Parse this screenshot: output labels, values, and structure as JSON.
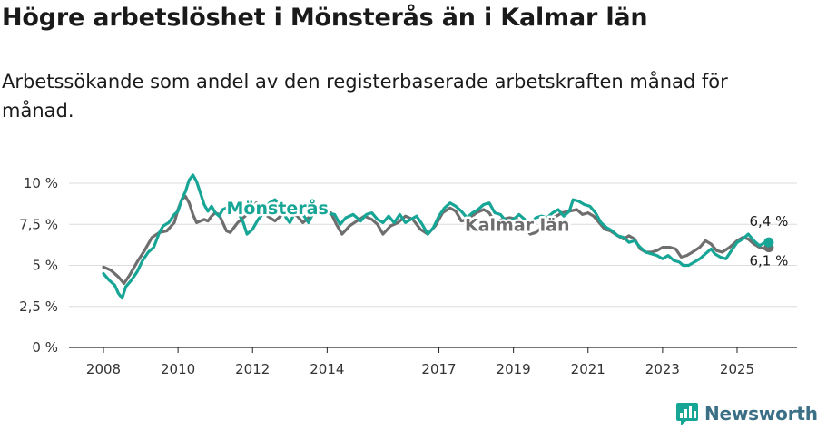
{
  "header": {
    "title": "Högre arbetslöshet i Mönsterås än i Kalmar län",
    "subtitle": "Arbetssökande som andel av den registerbaserade arbetskraften månad för månad."
  },
  "brand": {
    "name": "Newsworthy"
  },
  "chart_data": {
    "type": "line",
    "title": "Högre arbetslöshet i Mönsterås än i Kalmar län",
    "subtitle": "Arbetssökande som andel av den registerbaserade arbetskraften månad för månad.",
    "xlabel": "",
    "ylabel": "",
    "xlim": [
      2008,
      2026
    ],
    "ylim": [
      0,
      10
    ],
    "x_ticks": [
      {
        "value": 2008,
        "label": "2008"
      },
      {
        "value": 2010,
        "label": "2010"
      },
      {
        "value": 2012,
        "label": "2012"
      },
      {
        "value": 2014,
        "label": "2014"
      },
      {
        "value": 2017,
        "label": "2017"
      },
      {
        "value": 2019,
        "label": "2019"
      },
      {
        "value": 2021,
        "label": "2021"
      },
      {
        "value": 2023,
        "label": "2023"
      },
      {
        "value": 2025,
        "label": "2025"
      }
    ],
    "y_ticks": [
      {
        "value": 0,
        "label": "0 %"
      },
      {
        "value": 2.5,
        "label": "2,5 %"
      },
      {
        "value": 5,
        "label": "5 %"
      },
      {
        "value": 7.5,
        "label": "7,5 %"
      },
      {
        "value": 10,
        "label": "10 %"
      }
    ],
    "grid": true,
    "series": [
      {
        "name": "Kalmar län",
        "color": "#6e6e6e",
        "end_label": "6,1 %",
        "points": [
          [
            2008.0,
            4.9
          ],
          [
            2008.2,
            4.7
          ],
          [
            2008.4,
            4.3
          ],
          [
            2008.55,
            3.9
          ],
          [
            2008.7,
            4.4
          ],
          [
            2008.9,
            5.2
          ],
          [
            2009.1,
            5.9
          ],
          [
            2009.3,
            6.7
          ],
          [
            2009.5,
            7.0
          ],
          [
            2009.7,
            7.1
          ],
          [
            2009.9,
            7.6
          ],
          [
            2010.0,
            8.4
          ],
          [
            2010.1,
            9.0
          ],
          [
            2010.2,
            9.2
          ],
          [
            2010.3,
            8.8
          ],
          [
            2010.4,
            8.1
          ],
          [
            2010.5,
            7.6
          ],
          [
            2010.6,
            7.7
          ],
          [
            2010.7,
            7.8
          ],
          [
            2010.8,
            7.7
          ],
          [
            2010.9,
            8.0
          ],
          [
            2011.0,
            8.2
          ],
          [
            2011.1,
            8.1
          ],
          [
            2011.2,
            7.6
          ],
          [
            2011.3,
            7.1
          ],
          [
            2011.4,
            7.0
          ],
          [
            2011.5,
            7.3
          ],
          [
            2011.6,
            7.6
          ],
          [
            2011.8,
            8.0
          ],
          [
            2012.0,
            8.5
          ],
          [
            2012.1,
            8.8
          ],
          [
            2012.25,
            8.5
          ],
          [
            2012.4,
            8.0
          ],
          [
            2012.6,
            7.7
          ],
          [
            2012.8,
            8.1
          ],
          [
            2013.0,
            8.2
          ],
          [
            2013.2,
            8.0
          ],
          [
            2013.35,
            7.6
          ],
          [
            2013.5,
            7.9
          ],
          [
            2013.7,
            8.2
          ],
          [
            2013.9,
            8.1
          ],
          [
            2014.1,
            8.2
          ],
          [
            2014.25,
            7.5
          ],
          [
            2014.4,
            6.9
          ],
          [
            2014.6,
            7.4
          ],
          [
            2014.8,
            7.7
          ],
          [
            2015.0,
            8.0
          ],
          [
            2015.2,
            7.8
          ],
          [
            2015.35,
            7.5
          ],
          [
            2015.5,
            6.9
          ],
          [
            2015.7,
            7.4
          ],
          [
            2015.9,
            7.6
          ],
          [
            2016.1,
            8.0
          ],
          [
            2016.3,
            7.8
          ],
          [
            2016.5,
            7.2
          ],
          [
            2016.7,
            6.9
          ],
          [
            2016.9,
            7.4
          ],
          [
            2017.1,
            8.2
          ],
          [
            2017.3,
            8.5
          ],
          [
            2017.45,
            8.3
          ],
          [
            2017.6,
            7.7
          ],
          [
            2017.8,
            7.8
          ],
          [
            2018.0,
            8.2
          ],
          [
            2018.2,
            8.4
          ],
          [
            2018.35,
            8.2
          ],
          [
            2018.5,
            7.6
          ],
          [
            2018.7,
            7.8
          ],
          [
            2018.9,
            7.9
          ],
          [
            2019.1,
            7.8
          ],
          [
            2019.3,
            7.4
          ],
          [
            2019.45,
            6.9
          ],
          [
            2019.6,
            7.0
          ],
          [
            2019.8,
            7.4
          ],
          [
            2020.0,
            7.9
          ],
          [
            2020.15,
            8.0
          ],
          [
            2020.3,
            8.2
          ],
          [
            2020.5,
            8.3
          ],
          [
            2020.7,
            8.4
          ],
          [
            2020.85,
            8.1
          ],
          [
            2021.0,
            8.2
          ],
          [
            2021.15,
            8.0
          ],
          [
            2021.3,
            7.6
          ],
          [
            2021.45,
            7.2
          ],
          [
            2021.6,
            7.1
          ],
          [
            2021.8,
            6.8
          ],
          [
            2021.95,
            6.6
          ],
          [
            2022.1,
            6.8
          ],
          [
            2022.25,
            6.6
          ],
          [
            2022.4,
            6.0
          ],
          [
            2022.55,
            5.8
          ],
          [
            2022.7,
            5.8
          ],
          [
            2022.85,
            5.9
          ],
          [
            2023.0,
            6.1
          ],
          [
            2023.2,
            6.1
          ],
          [
            2023.35,
            6.0
          ],
          [
            2023.5,
            5.5
          ],
          [
            2023.65,
            5.6
          ],
          [
            2023.8,
            5.8
          ],
          [
            2024.0,
            6.1
          ],
          [
            2024.15,
            6.5
          ],
          [
            2024.3,
            6.3
          ],
          [
            2024.45,
            5.9
          ],
          [
            2024.6,
            5.8
          ],
          [
            2024.8,
            6.1
          ],
          [
            2025.0,
            6.5
          ],
          [
            2025.15,
            6.7
          ],
          [
            2025.3,
            6.6
          ],
          [
            2025.45,
            6.3
          ],
          [
            2025.6,
            6.1
          ],
          [
            2025.75,
            6.0
          ],
          [
            2025.85,
            6.1
          ]
        ]
      },
      {
        "name": "Mönsterås",
        "color": "#17a596",
        "end_label": "6,4 %",
        "points": [
          [
            2008.0,
            4.5
          ],
          [
            2008.15,
            4.1
          ],
          [
            2008.3,
            3.8
          ],
          [
            2008.4,
            3.3
          ],
          [
            2008.5,
            3.0
          ],
          [
            2008.6,
            3.7
          ],
          [
            2008.75,
            4.1
          ],
          [
            2008.9,
            4.6
          ],
          [
            2009.05,
            5.3
          ],
          [
            2009.2,
            5.8
          ],
          [
            2009.35,
            6.1
          ],
          [
            2009.5,
            7.0
          ],
          [
            2009.6,
            7.4
          ],
          [
            2009.75,
            7.6
          ],
          [
            2009.9,
            8.1
          ],
          [
            2010.0,
            8.3
          ],
          [
            2010.1,
            9.0
          ],
          [
            2010.2,
            9.5
          ],
          [
            2010.3,
            10.2
          ],
          [
            2010.4,
            10.5
          ],
          [
            2010.5,
            10.1
          ],
          [
            2010.6,
            9.4
          ],
          [
            2010.7,
            8.7
          ],
          [
            2010.8,
            8.3
          ],
          [
            2010.9,
            8.6
          ],
          [
            2011.0,
            8.2
          ],
          [
            2011.1,
            8.0
          ],
          [
            2011.2,
            8.4
          ],
          [
            2011.3,
            8.5
          ],
          [
            2011.45,
            8.6
          ],
          [
            2011.6,
            8.3
          ],
          [
            2011.75,
            7.6
          ],
          [
            2011.85,
            6.9
          ],
          [
            2012.0,
            7.2
          ],
          [
            2012.15,
            7.8
          ],
          [
            2012.3,
            8.2
          ],
          [
            2012.45,
            8.8
          ],
          [
            2012.6,
            9.0
          ],
          [
            2012.75,
            8.6
          ],
          [
            2012.9,
            7.9
          ],
          [
            2013.0,
            7.6
          ],
          [
            2013.15,
            8.3
          ],
          [
            2013.35,
            8.1
          ],
          [
            2013.5,
            7.6
          ],
          [
            2013.65,
            8.3
          ],
          [
            2013.8,
            8.1
          ],
          [
            2014.0,
            8.2
          ],
          [
            2014.2,
            8.1
          ],
          [
            2014.35,
            7.5
          ],
          [
            2014.5,
            7.9
          ],
          [
            2014.7,
            8.1
          ],
          [
            2014.9,
            7.7
          ],
          [
            2015.05,
            8.1
          ],
          [
            2015.2,
            8.2
          ],
          [
            2015.35,
            7.8
          ],
          [
            2015.5,
            7.6
          ],
          [
            2015.65,
            8.0
          ],
          [
            2015.8,
            7.6
          ],
          [
            2015.95,
            8.1
          ],
          [
            2016.1,
            7.6
          ],
          [
            2016.25,
            7.8
          ],
          [
            2016.4,
            8.0
          ],
          [
            2016.55,
            7.5
          ],
          [
            2016.7,
            6.9
          ],
          [
            2016.85,
            7.3
          ],
          [
            2017.0,
            8.0
          ],
          [
            2017.15,
            8.5
          ],
          [
            2017.3,
            8.8
          ],
          [
            2017.45,
            8.6
          ],
          [
            2017.6,
            8.3
          ],
          [
            2017.75,
            7.9
          ],
          [
            2017.9,
            8.2
          ],
          [
            2018.05,
            8.4
          ],
          [
            2018.2,
            8.7
          ],
          [
            2018.35,
            8.8
          ],
          [
            2018.5,
            8.2
          ],
          [
            2018.65,
            8.1
          ],
          [
            2018.8,
            7.7
          ],
          [
            2019.0,
            7.8
          ],
          [
            2019.15,
            8.1
          ],
          [
            2019.3,
            7.8
          ],
          [
            2019.45,
            7.5
          ],
          [
            2019.6,
            7.9
          ],
          [
            2019.75,
            8.0
          ],
          [
            2019.9,
            7.9
          ],
          [
            2020.05,
            8.2
          ],
          [
            2020.2,
            8.4
          ],
          [
            2020.35,
            8.0
          ],
          [
            2020.5,
            8.3
          ],
          [
            2020.6,
            9.0
          ],
          [
            2020.75,
            8.9
          ],
          [
            2020.9,
            8.7
          ],
          [
            2021.05,
            8.6
          ],
          [
            2021.2,
            8.2
          ],
          [
            2021.35,
            7.6
          ],
          [
            2021.5,
            7.3
          ],
          [
            2021.65,
            7.1
          ],
          [
            2021.8,
            6.8
          ],
          [
            2021.95,
            6.7
          ],
          [
            2022.1,
            6.4
          ],
          [
            2022.25,
            6.5
          ],
          [
            2022.4,
            6.1
          ],
          [
            2022.55,
            5.8
          ],
          [
            2022.7,
            5.7
          ],
          [
            2022.85,
            5.6
          ],
          [
            2023.0,
            5.4
          ],
          [
            2023.15,
            5.6
          ],
          [
            2023.3,
            5.3
          ],
          [
            2023.45,
            5.2
          ],
          [
            2023.55,
            5.0
          ],
          [
            2023.7,
            5.0
          ],
          [
            2023.85,
            5.2
          ],
          [
            2024.0,
            5.4
          ],
          [
            2024.15,
            5.7
          ],
          [
            2024.3,
            6.0
          ],
          [
            2024.4,
            5.7
          ],
          [
            2024.55,
            5.5
          ],
          [
            2024.7,
            5.4
          ],
          [
            2024.85,
            5.9
          ],
          [
            2025.0,
            6.4
          ],
          [
            2025.15,
            6.6
          ],
          [
            2025.3,
            6.9
          ],
          [
            2025.45,
            6.5
          ],
          [
            2025.6,
            6.2
          ],
          [
            2025.75,
            6.4
          ],
          [
            2025.85,
            6.4
          ]
        ]
      }
    ]
  }
}
